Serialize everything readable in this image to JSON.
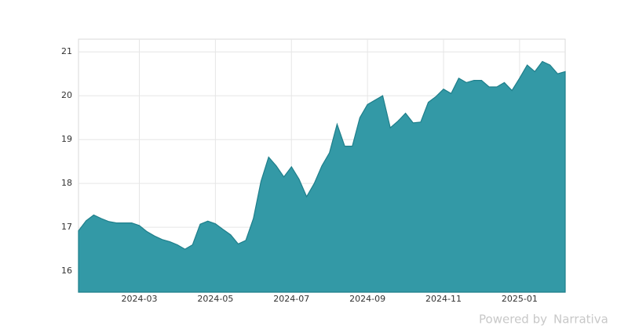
{
  "chart_data": {
    "type": "area",
    "categories": [
      null,
      null,
      null,
      null,
      null,
      null,
      null,
      null,
      "2024-03",
      null,
      null,
      null,
      null,
      null,
      null,
      null,
      null,
      null,
      "2024-05",
      null,
      null,
      null,
      null,
      null,
      null,
      null,
      null,
      null,
      "2024-07",
      null,
      null,
      null,
      null,
      null,
      null,
      null,
      null,
      null,
      "2024-09",
      null,
      null,
      null,
      null,
      null,
      null,
      null,
      null,
      null,
      "2024-11",
      null,
      null,
      null,
      null,
      null,
      null,
      null,
      null,
      null,
      "2025-01",
      null,
      null,
      null,
      null,
      null,
      null
    ],
    "values": [
      16.92,
      17.15,
      17.28,
      17.2,
      17.13,
      17.1,
      17.1,
      17.1,
      17.04,
      16.9,
      16.8,
      16.72,
      16.67,
      16.6,
      16.5,
      16.6,
      17.07,
      17.14,
      17.08,
      16.95,
      16.83,
      16.62,
      16.7,
      17.2,
      18.05,
      18.6,
      18.4,
      18.15,
      18.38,
      18.1,
      17.7,
      18.0,
      18.4,
      18.7,
      19.35,
      18.85,
      18.85,
      19.5,
      19.8,
      19.9,
      20.0,
      19.27,
      19.42,
      19.6,
      19.38,
      19.4,
      19.85,
      19.98,
      20.15,
      20.05,
      20.4,
      20.3,
      20.35,
      20.35,
      20.2,
      20.2,
      20.3,
      20.12,
      20.4,
      20.7,
      20.55,
      20.78,
      20.7,
      20.5,
      20.55
    ],
    "color": "#3399a6",
    "ylim": [
      15.52,
      21.29
    ],
    "yticks": [
      16,
      17,
      18,
      19,
      20,
      21
    ],
    "grid": true,
    "footer": "Powered by",
    "brand": "Narrativa"
  }
}
